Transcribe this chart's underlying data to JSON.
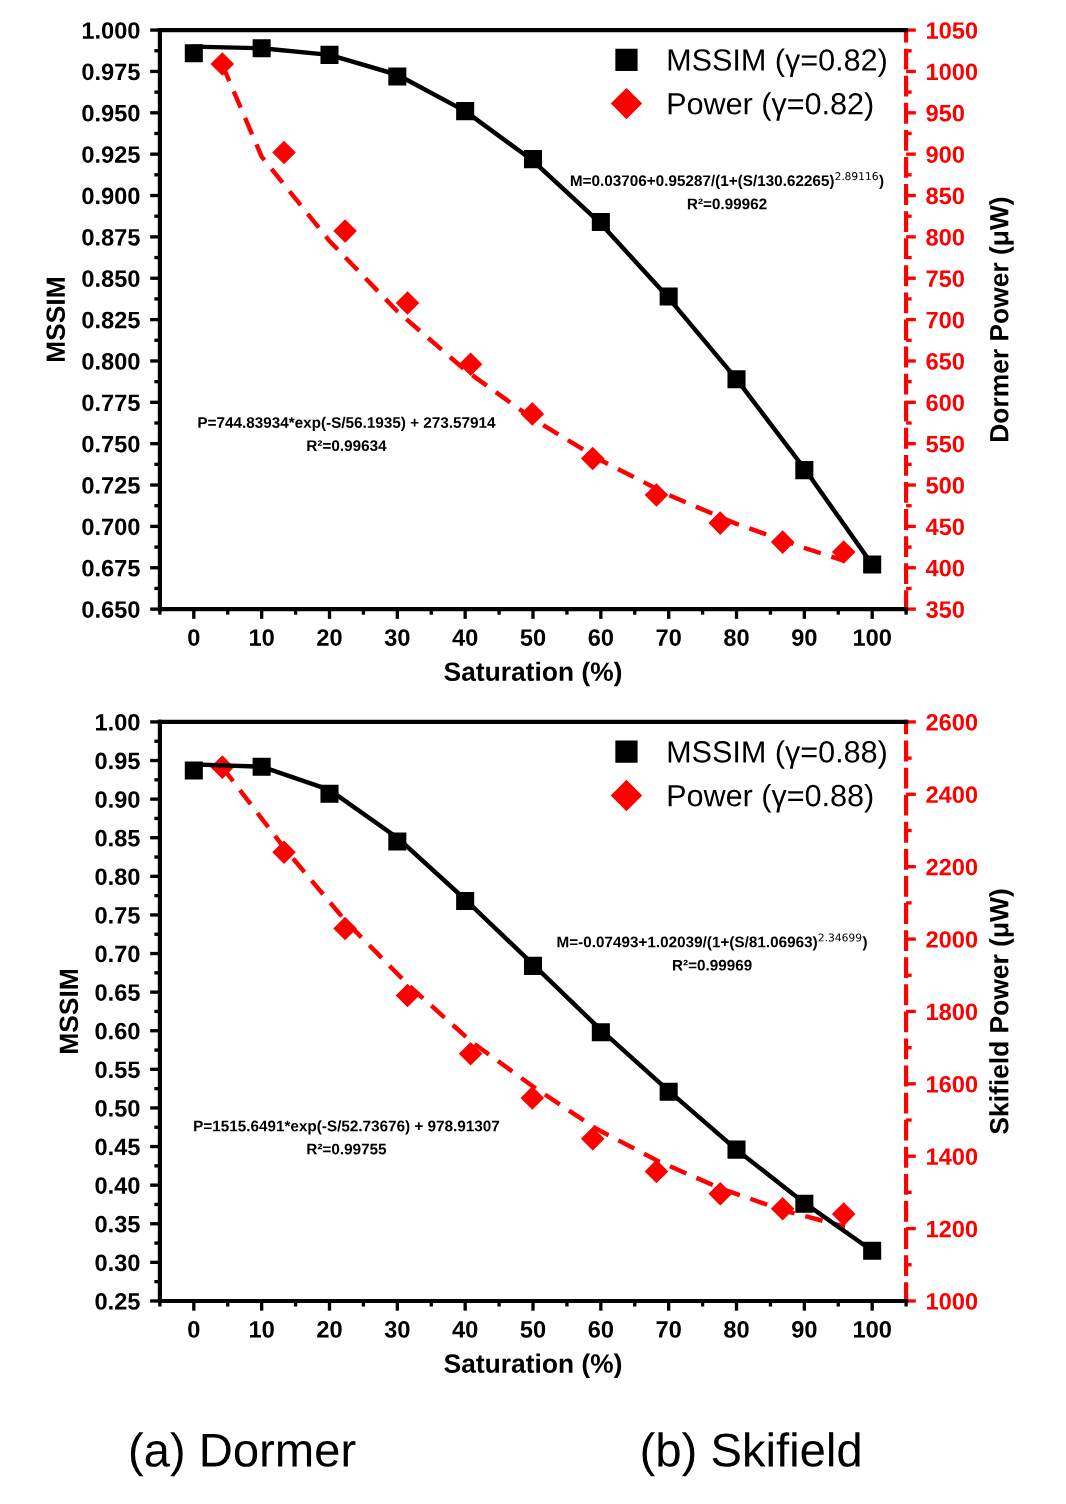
{
  "chart_data": [
    {
      "type": "scatter",
      "xlabel": "Saturation (%)",
      "ylabel": "MSSIM",
      "y2label": "Dormer Power (μW)",
      "xlim": [
        -5,
        105
      ],
      "xticks": [
        0,
        10,
        20,
        30,
        40,
        50,
        60,
        70,
        80,
        90,
        100
      ],
      "ylim": [
        0.65,
        1.0
      ],
      "yticks": [
        {
          "value": 0.65,
          "label": "0.650"
        },
        {
          "value": 0.675,
          "label": "0.675"
        },
        {
          "value": 0.7,
          "label": "0.700"
        },
        {
          "value": 0.725,
          "label": "0.725"
        },
        {
          "value": 0.75,
          "label": "0.750"
        },
        {
          "value": 0.775,
          "label": "0.775"
        },
        {
          "value": 0.8,
          "label": "0.800"
        },
        {
          "value": 0.825,
          "label": "0.825"
        },
        {
          "value": 0.85,
          "label": "0.850"
        },
        {
          "value": 0.875,
          "label": "0.875"
        },
        {
          "value": 0.9,
          "label": "0.900"
        },
        {
          "value": 0.925,
          "label": "0.925"
        },
        {
          "value": 0.95,
          "label": "0.950"
        },
        {
          "value": 0.975,
          "label": "0.975"
        },
        {
          "value": 1.0,
          "label": "1.000"
        }
      ],
      "y2lim": [
        350,
        1050
      ],
      "y2ticks": [
        350,
        400,
        450,
        500,
        550,
        600,
        650,
        700,
        750,
        800,
        850,
        900,
        950,
        1000,
        1050
      ],
      "legend": "top right",
      "series": [
        {
          "name": "MSSIM (γ=0.82)",
          "marker": "square",
          "color": "#000000",
          "x": [
            0,
            10,
            20,
            30,
            40,
            50,
            60,
            70,
            80,
            90,
            100
          ],
          "values": [
            0.986,
            0.989,
            0.985,
            0.972,
            0.951,
            0.922,
            0.884,
            0.839,
            0.789,
            0.734,
            0.677
          ]
        },
        {
          "type": "line",
          "line_style": "solid",
          "color": "#000000",
          "x": [
            0,
            10,
            20,
            30,
            40,
            50,
            60,
            70,
            80,
            90,
            100
          ],
          "values": [
            0.99,
            0.989,
            0.985,
            0.973,
            0.951,
            0.921,
            0.883,
            0.838,
            0.789,
            0.735,
            0.677
          ]
        },
        {
          "name": "Power (γ=0.82)",
          "marker": "diamond",
          "axis": "y2",
          "color": "#ff0000",
          "x": [
            4.2,
            13.3,
            22.3,
            31.5,
            40.8,
            49.9,
            58.8,
            68.2,
            77.6,
            86.8,
            95.8
          ],
          "values": [
            1009,
            902,
            807,
            720,
            646,
            586,
            532,
            488,
            454,
            431,
            419
          ]
        },
        {
          "type": "line",
          "line_style": "dashed",
          "axis": "y2",
          "color": "#ff0000",
          "x": [
            4.2,
            10,
            20,
            30,
            40,
            50,
            60,
            70,
            80,
            90,
            96
          ],
          "values": [
            1008,
            897,
            795,
            710,
            639,
            580,
            530,
            488,
            453,
            424,
            408
          ]
        }
      ],
      "annotations": [
        "M=0.03706+0.95287/(1+(S/130.62265)$^{2.89116}$)\nR²=0.99962",
        "P=744.83934*exp(-S/56.1935) + 273.57914\nR²=0.99634",
        "(a) Dormer"
      ]
    },
    {
      "type": "scatter",
      "xlabel": "Saturation (%)",
      "ylabel": "MSSIM",
      "y2label": "Skifield Power (μW)",
      "xlim": [
        -5,
        105
      ],
      "xticks": [
        0,
        10,
        20,
        30,
        40,
        50,
        60,
        70,
        80,
        90,
        100
      ],
      "ylim": [
        0.25,
        1.0
      ],
      "yticks": [
        {
          "value": 0.25,
          "label": "0.25"
        },
        {
          "value": 0.3,
          "label": "0.30"
        },
        {
          "value": 0.35,
          "label": "0.35"
        },
        {
          "value": 0.4,
          "label": "0.40"
        },
        {
          "value": 0.45,
          "label": "0.45"
        },
        {
          "value": 0.5,
          "label": "0.50"
        },
        {
          "value": 0.55,
          "label": "0.55"
        },
        {
          "value": 0.6,
          "label": "0.60"
        },
        {
          "value": 0.65,
          "label": "0.65"
        },
        {
          "value": 0.7,
          "label": "0.70"
        },
        {
          "value": 0.75,
          "label": "0.75"
        },
        {
          "value": 0.8,
          "label": "0.80"
        },
        {
          "value": 0.85,
          "label": "0.85"
        },
        {
          "value": 0.9,
          "label": "0.90"
        },
        {
          "value": 0.95,
          "label": "0.95"
        },
        {
          "value": 1.0,
          "label": "1.00"
        }
      ],
      "y2lim": [
        1000,
        2600
      ],
      "y2ticks": [
        1000,
        1200,
        1400,
        1600,
        1800,
        2000,
        2200,
        2400,
        2600
      ],
      "legend": "top right",
      "series": [
        {
          "name": "MSSIM (γ=0.88)",
          "marker": "square",
          "color": "#000000",
          "x": [
            0,
            10,
            20,
            30,
            40,
            50,
            60,
            70,
            80,
            90,
            100
          ],
          "values": [
            0.937,
            0.942,
            0.907,
            0.845,
            0.768,
            0.684,
            0.598,
            0.521,
            0.446,
            0.376,
            0.315
          ]
        },
        {
          "type": "line",
          "line_style": "solid",
          "color": "#000000",
          "x": [
            0,
            10,
            20,
            30,
            40,
            50,
            60,
            70,
            80,
            90,
            100
          ],
          "values": [
            0.945,
            0.942,
            0.912,
            0.85,
            0.77,
            0.686,
            0.601,
            0.522,
            0.446,
            0.377,
            0.315
          ]
        },
        {
          "name": "Power (γ=0.88)",
          "marker": "diamond",
          "axis": "y2",
          "color": "#ff0000",
          "x": [
            4.2,
            13.3,
            22.3,
            31.5,
            40.8,
            49.9,
            58.8,
            68.2,
            77.6,
            86.8,
            95.8
          ],
          "values": [
            2475,
            2240,
            2029,
            1844,
            1683,
            1561,
            1448,
            1358,
            1296,
            1255,
            1240
          ]
        },
        {
          "type": "line",
          "line_style": "dashed",
          "axis": "y2",
          "color": "#ff0000",
          "x": [
            4.2,
            13.4,
            22.6,
            31.8,
            41,
            50.2,
            59.4,
            68.6,
            77.8,
            87,
            96
          ],
          "values": [
            2475,
            2250,
            2045,
            1870,
            1715,
            1590,
            1475,
            1385,
            1310,
            1250,
            1205
          ]
        }
      ],
      "annotations": [
        "M=-0.07493+1.02039/(1+(S/81.06963)$^{2.34699}$)\nR²=0.99969",
        "P=1515.6491*exp(-S/52.73676) + 978.91307\nR²=0.99755",
        "(b) Skifield"
      ]
    }
  ]
}
